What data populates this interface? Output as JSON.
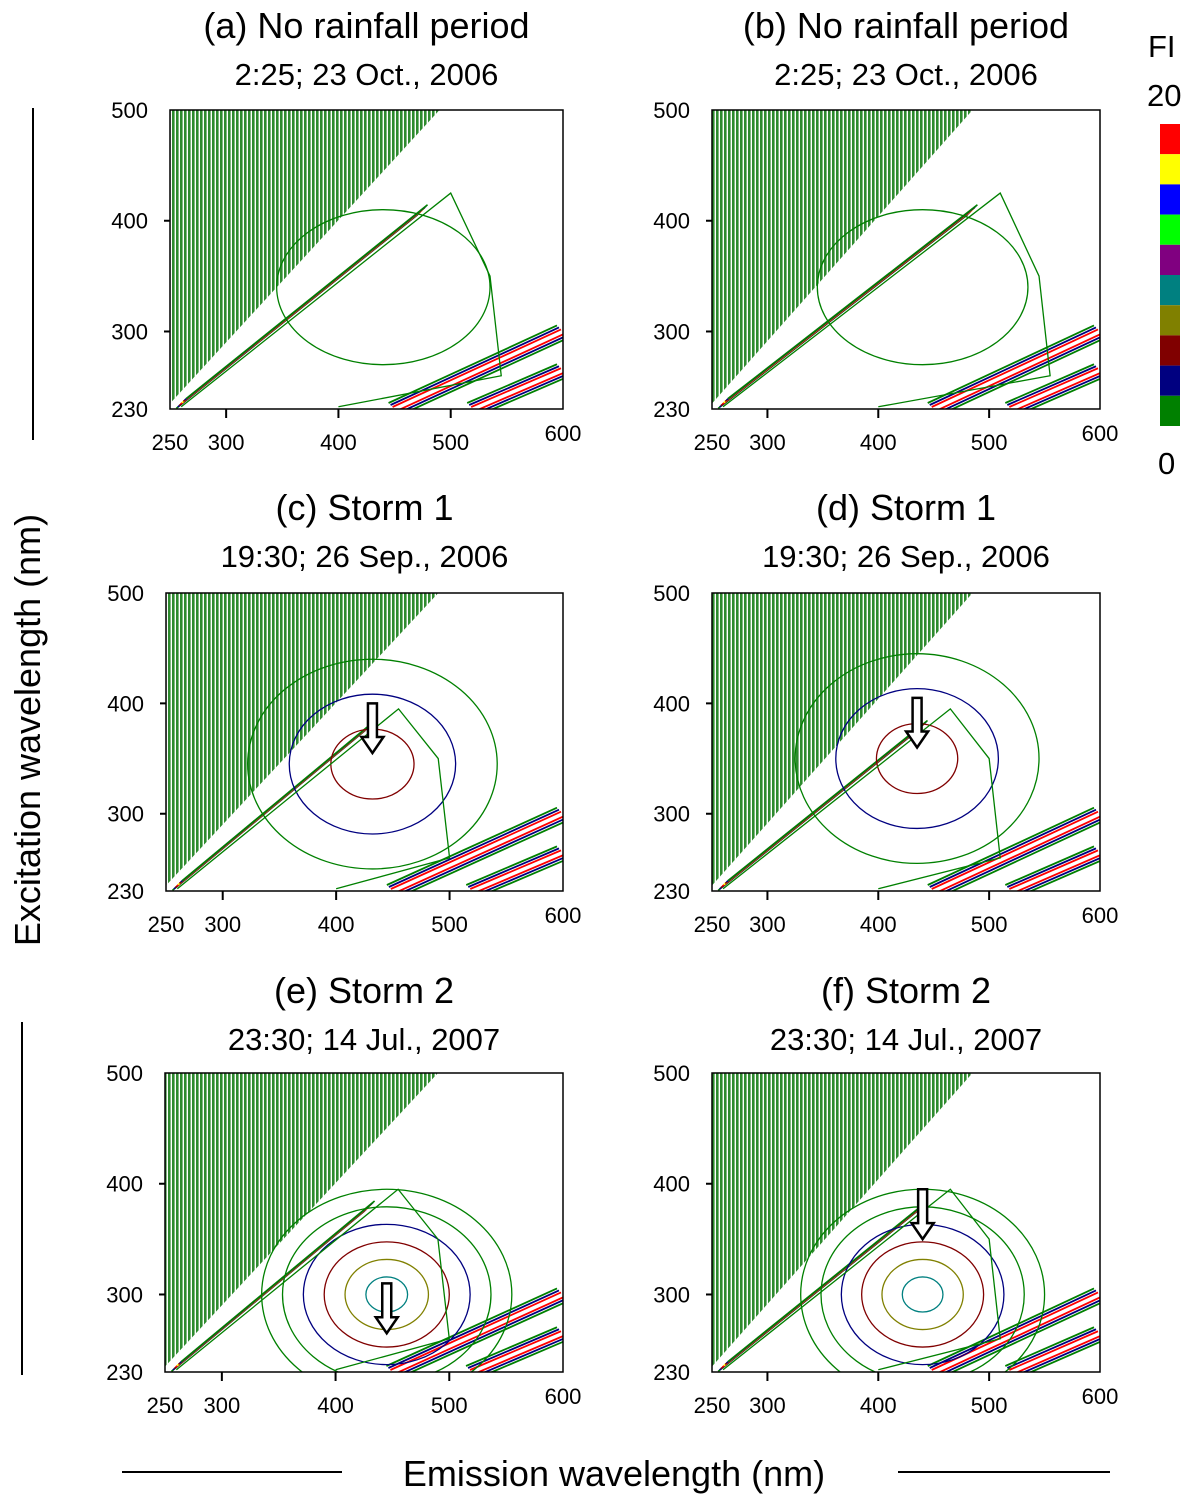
{
  "colorbar": {
    "label": "FI",
    "max_label": "20",
    "min_label": "0",
    "colors": [
      "#ff0000",
      "#ffff00",
      "#0000ff",
      "#00ff00",
      "#800080",
      "#008080",
      "#808000",
      "#800000",
      "#000080",
      "#008000"
    ]
  },
  "axes": {
    "ylabel": "Excitation wavelength (nm)",
    "xlabel": "Emission wavelength (nm)"
  },
  "chart_data": [
    {
      "type": "heatmap",
      "title": "(a)  No rainfall period",
      "subtitle": "2:25; 23 Oct., 2006",
      "xlim": [
        250,
        600
      ],
      "ylim": [
        230,
        500
      ],
      "xticks": [
        "250",
        "300",
        "400",
        "500",
        "600"
      ],
      "yticks": [
        "230",
        "300",
        "400",
        "500"
      ],
      "peak": {
        "em": 440,
        "ex": 340,
        "level": 0
      },
      "arrow": false
    },
    {
      "type": "heatmap",
      "title": "(b) No rainfall period",
      "subtitle": "2:25; 23 Oct., 2006",
      "xlim": [
        250,
        600
      ],
      "ylim": [
        230,
        500
      ],
      "xticks": [
        "250",
        "300",
        "400",
        "500",
        "600"
      ],
      "yticks": [
        "230",
        "300",
        "400",
        "500"
      ],
      "peak": {
        "em": 440,
        "ex": 340,
        "level": 0
      },
      "arrow": false
    },
    {
      "type": "heatmap",
      "title": "(c) Storm 1",
      "subtitle": "19:30; 26 Sep., 2006",
      "xlim": [
        250,
        600
      ],
      "ylim": [
        230,
        500
      ],
      "xticks": [
        "250",
        "300",
        "400",
        "500",
        "600"
      ],
      "yticks": [
        "230",
        "300",
        "400",
        "500"
      ],
      "peak": {
        "em": 432,
        "ex": 345,
        "level": 2
      },
      "arrow": true
    },
    {
      "type": "heatmap",
      "title": "(d) Storm 1",
      "subtitle": "19:30; 26 Sep., 2006",
      "xlim": [
        250,
        600
      ],
      "ylim": [
        230,
        500
      ],
      "xticks": [
        "250",
        "300",
        "400",
        "500",
        "600"
      ],
      "yticks": [
        "230",
        "300",
        "400",
        "500"
      ],
      "peak": {
        "em": 435,
        "ex": 350,
        "level": 2
      },
      "arrow": true
    },
    {
      "type": "heatmap",
      "title": "(e) Storm 2",
      "subtitle": "23:30; 14 Jul., 2007",
      "xlim": [
        250,
        600
      ],
      "ylim": [
        230,
        500
      ],
      "xticks": [
        "250",
        "300",
        "400",
        "500",
        "600"
      ],
      "yticks": [
        "230",
        "300",
        "400",
        "500"
      ],
      "peak": {
        "em": 445,
        "ex": 255,
        "level": 4
      },
      "arrow": true
    },
    {
      "type": "heatmap",
      "title": "(f) Storm 2",
      "subtitle": "23:30; 14 Jul., 2007",
      "xlim": [
        250,
        600
      ],
      "ylim": [
        230,
        500
      ],
      "xticks": [
        "250",
        "300",
        "400",
        "500",
        "600"
      ],
      "yticks": [
        "230",
        "300",
        "400",
        "500"
      ],
      "peak": {
        "em": 440,
        "ex": 340,
        "level": 4
      },
      "arrow": true
    }
  ]
}
